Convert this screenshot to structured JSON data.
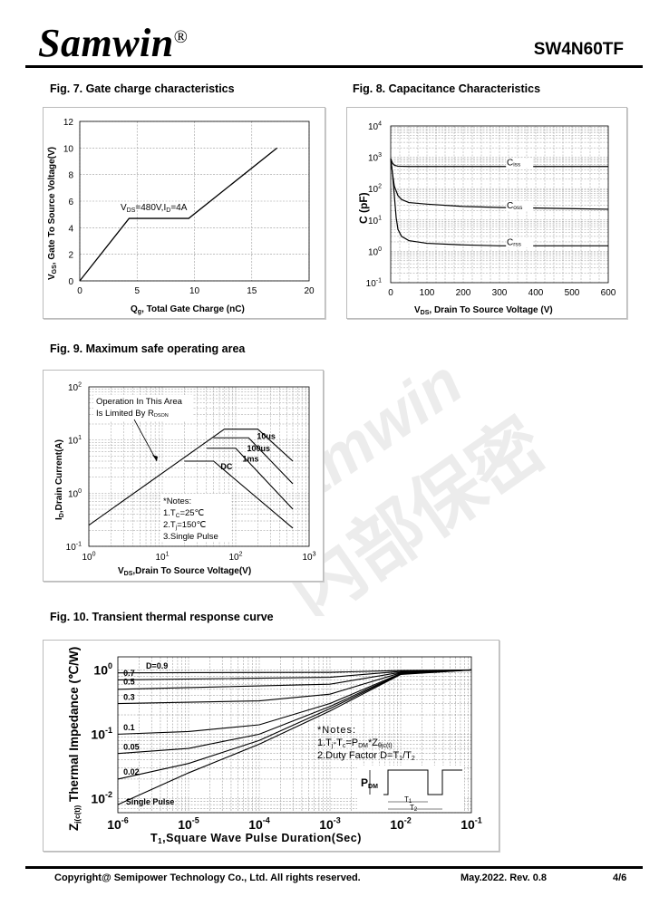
{
  "header": {
    "logo": "Samwin",
    "logo_mark": "®",
    "part_number": "SW4N60TF"
  },
  "fig7": {
    "title": "Fig. 7. Gate charge characteristics",
    "xlabel_main": "Q",
    "xlabel_sub": "g",
    "xlabel_rest": ", Total Gate Charge (nC)",
    "ylabel_main": "V",
    "ylabel_sub": "GS",
    "ylabel_rest": ", Gate To Source Voltage(V)",
    "annotation_a": "V",
    "annotation_sub1": "DS",
    "annotation_b": "=480V,I",
    "annotation_sub2": "D",
    "annotation_c": "=4A",
    "x_ticks": [
      "0",
      "5",
      "10",
      "15",
      "20"
    ],
    "y_ticks": [
      "0",
      "2",
      "4",
      "6",
      "8",
      "10",
      "12"
    ]
  },
  "fig8": {
    "title": "Fig. 8. Capacitance Characteristics",
    "ylabel": "C (pF)",
    "xlabel_main": "V",
    "xlabel_sub": "DS",
    "xlabel_rest": ", Drain To Source Voltage (V)",
    "x_ticks": [
      "0",
      "100",
      "200",
      "300",
      "400",
      "500",
      "600"
    ],
    "y_ticks": [
      {
        "base": "10",
        "exp": "-1"
      },
      {
        "base": "10",
        "exp": "0"
      },
      {
        "base": "10",
        "exp": "1"
      },
      {
        "base": "10",
        "exp": "2"
      },
      {
        "base": "10",
        "exp": "3"
      },
      {
        "base": "10",
        "exp": "4"
      }
    ],
    "series_labels": [
      {
        "main": "C",
        "sub": "iss"
      },
      {
        "main": "C",
        "sub": "oss"
      },
      {
        "main": "C",
        "sub": "rss"
      }
    ]
  },
  "fig9": {
    "title": "Fig. 9. Maximum safe operating area",
    "ylabel_main": "I",
    "ylabel_sub": "D",
    "ylabel_rest": ",Drain Current(A)",
    "xlabel_main": "V",
    "xlabel_sub": "DS",
    "xlabel_rest": ",Drain To Source Voltage(V)",
    "op_line1": "Operation In This Area",
    "op_line2": "Is Limited By R",
    "op_sub": "DSON",
    "notes": [
      "*Notes:",
      "1.T",
      "2.T",
      "3.Single Pulse"
    ],
    "note1_sub": "C",
    "note1_rest": "=25℃",
    "note2_sub": "j",
    "note2_rest": "=150℃",
    "curve_labels": [
      "10us",
      "100us",
      "1ms",
      "DC"
    ],
    "x_ticks": [
      {
        "base": "10",
        "exp": "0"
      },
      {
        "base": "10",
        "exp": "1"
      },
      {
        "base": "10",
        "exp": "2"
      },
      {
        "base": "10",
        "exp": "3"
      }
    ],
    "y_ticks": [
      {
        "base": "10",
        "exp": "-1"
      },
      {
        "base": "10",
        "exp": "0"
      },
      {
        "base": "10",
        "exp": "1"
      },
      {
        "base": "10",
        "exp": "2"
      }
    ]
  },
  "fig10": {
    "title": "Fig. 10. Transient thermal response curve",
    "ylabel_main": "Z",
    "ylabel_sub": "j(c(t))",
    "ylabel_rest": " Thermal  Impedance (℃/W)",
    "xlabel_main": "T",
    "xlabel_sub": "1",
    "xlabel_rest": ",Square Wave Pulse Duration(Sec)",
    "duty_labels": [
      "D=0.9",
      "0.7",
      "0.5",
      "0.3",
      "0.1",
      "0.05",
      "0.02",
      "Single Pulse"
    ],
    "notes_title": "*Notes:",
    "note1": "1.T",
    "note1_sub_a": "j",
    "note1_mid": "-T",
    "note1_sub_b": "c",
    "note1_mid2": "=P",
    "note1_sub_c": "DM",
    "note1_mid3": "*Z",
    "note1_sub_d": "θjc(t)",
    "note2": "2.Duty Factor D=T",
    "note2_sub_a": "1",
    "note2_mid": "/T",
    "note2_sub_b": "2",
    "pdm_main": "P",
    "pdm_sub": "DM",
    "t1_main": "T",
    "t1_sub": "1",
    "t2_main": "T",
    "t2_sub": "2",
    "x_ticks": [
      {
        "base": "10",
        "exp": "-6"
      },
      {
        "base": "10",
        "exp": "-5"
      },
      {
        "base": "10",
        "exp": "-4"
      },
      {
        "base": "10",
        "exp": "-3"
      },
      {
        "base": "10",
        "exp": "-2"
      },
      {
        "base": "10",
        "exp": "-1"
      }
    ],
    "y_ticks": [
      {
        "base": "10",
        "exp": "-2"
      },
      {
        "base": "10",
        "exp": "-1"
      },
      {
        "base": "10",
        "exp": "0"
      }
    ]
  },
  "footer": {
    "copyright": "Copyright@ Semipower Technology Co., Ltd. All rights reserved.",
    "revision": "May.2022. Rev. 0.8",
    "page": "4/6"
  },
  "watermark": {
    "text_a": "Samwin",
    "text_b": "内部保密"
  },
  "chart_data": [
    {
      "type": "line",
      "title": "Fig. 7. Gate charge characteristics",
      "xlabel": "Qg, Total Gate Charge (nC)",
      "ylabel": "VGS, Gate To Source Voltage(V)",
      "xlim": [
        0,
        20
      ],
      "ylim": [
        0,
        12
      ],
      "grid": true,
      "series": [
        {
          "x": [
            0,
            4.3,
            9.5,
            17.2
          ],
          "y": [
            0,
            4.7,
            4.7,
            10
          ]
        }
      ]
    },
    {
      "type": "line",
      "title": "Fig. 8. Capacitance Characteristics",
      "xlabel": "VDS, Drain To Source Voltage (V)",
      "ylabel": "C (pF)",
      "xlim": [
        0,
        600
      ],
      "ylim": [
        0.1,
        10000
      ],
      "yscale": "log",
      "grid": true,
      "series": [
        {
          "name": "Ciss",
          "x": [
            0,
            5,
            10,
            20,
            50,
            100,
            600
          ],
          "y": [
            900,
            650,
            560,
            520,
            510,
            510,
            510
          ]
        },
        {
          "name": "Coss",
          "x": [
            0,
            5,
            10,
            20,
            30,
            50,
            100,
            200,
            300,
            400,
            600
          ],
          "y": [
            900,
            300,
            120,
            60,
            45,
            36,
            32,
            27,
            25,
            24,
            22
          ]
        },
        {
          "name": "Crss",
          "x": [
            0,
            5,
            10,
            15,
            20,
            30,
            50,
            100,
            200,
            300,
            400,
            600
          ],
          "y": [
            900,
            300,
            60,
            12,
            5,
            3,
            2.2,
            1.8,
            1.6,
            1.5,
            1.5,
            1.5
          ]
        }
      ]
    },
    {
      "type": "line",
      "title": "Fig. 9. Maximum safe operating area",
      "xlabel": "VDS,Drain To Source Voltage(V)",
      "ylabel": "ID,Drain Current(A)",
      "xlim": [
        1,
        1000
      ],
      "ylim": [
        0.1,
        100
      ],
      "xscale": "log",
      "yscale": "log",
      "grid": true,
      "series": [
        {
          "name": "RDSON limit",
          "x": [
            1,
            70
          ],
          "y": [
            0.25,
            16
          ]
        },
        {
          "name": "10us",
          "x": [
            70,
            200,
            600
          ],
          "y": [
            16,
            16,
            4
          ]
        },
        {
          "name": "100us",
          "x": [
            50,
            150,
            600
          ],
          "y": [
            11,
            11,
            1.5
          ]
        },
        {
          "name": "1ms",
          "x": [
            40,
            100,
            600
          ],
          "y": [
            7,
            7,
            0.5
          ]
        },
        {
          "name": "DC",
          "x": [
            20,
            50,
            600
          ],
          "y": [
            4,
            4,
            0.22
          ]
        }
      ]
    },
    {
      "type": "line",
      "title": "Fig. 10. Transient thermal response curve",
      "xlabel": "T1,Square Wave Pulse Duration(Sec)",
      "ylabel": "Zj(c(t)) Thermal Impedance (℃/W)",
      "xlim": [
        1e-06,
        0.1
      ],
      "ylim": [
        0.01,
        1.5
      ],
      "xscale": "log",
      "yscale": "log",
      "grid": true,
      "series": [
        {
          "name": "D=0.9",
          "x": [
            1e-06,
            0.001,
            0.01,
            0.1
          ],
          "y": [
            0.9,
            0.92,
            0.98,
            1
          ]
        },
        {
          "name": "0.7",
          "x": [
            1e-06,
            0.001,
            0.01,
            0.1
          ],
          "y": [
            0.7,
            0.77,
            0.95,
            1
          ]
        },
        {
          "name": "0.5",
          "x": [
            1e-06,
            0.001,
            0.01,
            0.1
          ],
          "y": [
            0.5,
            0.6,
            0.92,
            1
          ]
        },
        {
          "name": "0.3",
          "x": [
            1e-06,
            0.0001,
            0.001,
            0.01,
            0.1
          ],
          "y": [
            0.3,
            0.33,
            0.42,
            0.9,
            1
          ]
        },
        {
          "name": "0.1",
          "x": [
            1e-06,
            1e-05,
            0.0001,
            0.001,
            0.01,
            0.1
          ],
          "y": [
            0.1,
            0.11,
            0.14,
            0.3,
            0.88,
            1
          ]
        },
        {
          "name": "0.05",
          "x": [
            1e-06,
            1e-05,
            0.0001,
            0.001,
            0.01,
            0.1
          ],
          "y": [
            0.05,
            0.06,
            0.1,
            0.27,
            0.87,
            1
          ]
        },
        {
          "name": "0.02",
          "x": [
            1e-06,
            1e-05,
            0.0001,
            0.001,
            0.01,
            0.1
          ],
          "y": [
            0.02,
            0.035,
            0.08,
            0.25,
            0.86,
            1
          ]
        },
        {
          "name": "Single Pulse",
          "x": [
            1e-06,
            1e-05,
            0.0001,
            0.001,
            0.01,
            0.1
          ],
          "y": [
            0.008,
            0.025,
            0.07,
            0.23,
            0.85,
            1
          ]
        }
      ]
    }
  ]
}
